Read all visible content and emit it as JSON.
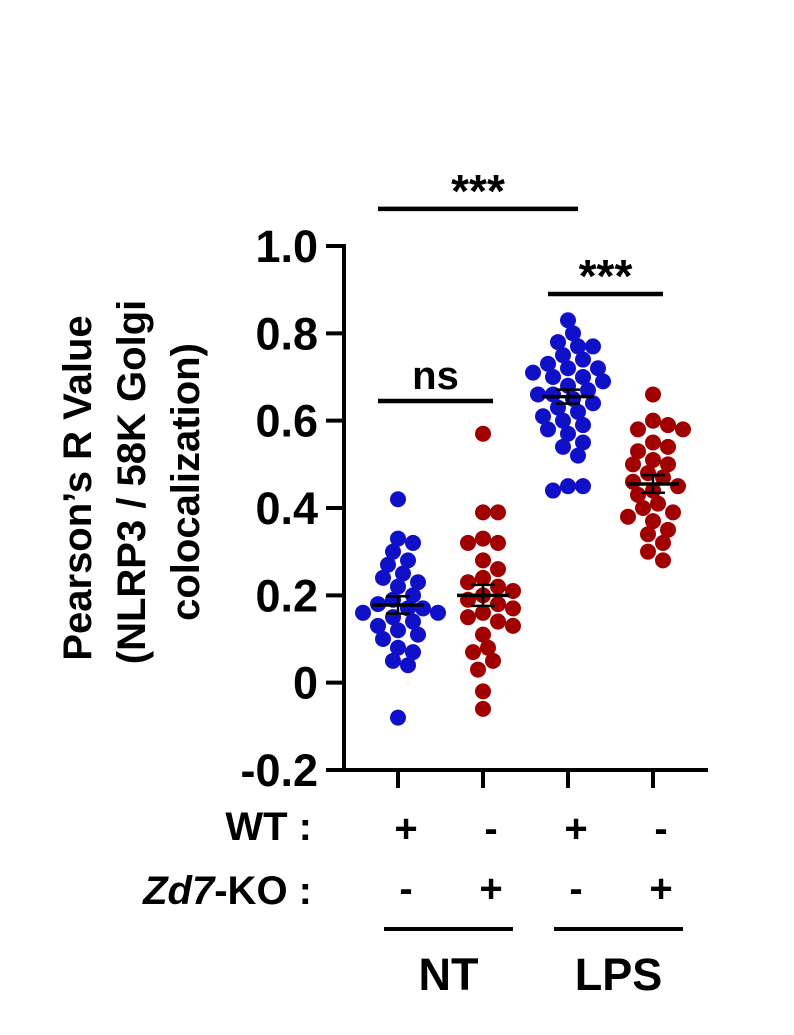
{
  "chart_data": {
    "type": "scatter",
    "ylabel_lines": [
      "Pearson’s R Value",
      "(NLRP3 / 58K Golgi",
      "colocalization)"
    ],
    "ylim": [
      -0.2,
      1.0
    ],
    "yticks": [
      1.0,
      0.8,
      0.6,
      0.4,
      0.2,
      0,
      -0.2
    ],
    "ytick_labels": [
      "1.0",
      "0.8",
      "0.6",
      "0.4",
      "0.2",
      "0",
      "-0.2"
    ],
    "row_labels": [
      {
        "prefix": "WT",
        "italic": "",
        "suffix": " :"
      },
      {
        "prefix": "",
        "italic": "Zd7",
        "suffix": "-KO :"
      }
    ],
    "groups": [
      {
        "wt": "+",
        "ko": "-",
        "color": "#1010c8",
        "mean": 0.178,
        "sem": 0.02,
        "points": [
          0.42,
          0.33,
          0.32,
          0.3,
          0.28,
          0.27,
          0.25,
          0.24,
          0.23,
          0.22,
          0.2,
          0.19,
          0.18,
          0.17,
          0.17,
          0.16,
          0.16,
          0.15,
          0.14,
          0.13,
          0.12,
          0.11,
          0.1,
          0.08,
          0.07,
          0.05,
          0.04,
          -0.08
        ]
      },
      {
        "wt": "-",
        "ko": "+",
        "color": "#a00000",
        "mean": 0.2,
        "sem": 0.024,
        "points": [
          0.57,
          0.39,
          0.39,
          0.33,
          0.32,
          0.32,
          0.28,
          0.26,
          0.24,
          0.23,
          0.22,
          0.21,
          0.2,
          0.19,
          0.18,
          0.17,
          0.16,
          0.15,
          0.14,
          0.13,
          0.11,
          0.08,
          0.07,
          0.05,
          0.03,
          -0.02,
          -0.06
        ]
      },
      {
        "wt": "+",
        "ko": "-",
        "color": "#1010c8",
        "mean": 0.655,
        "sem": 0.016,
        "points": [
          0.83,
          0.8,
          0.78,
          0.77,
          0.77,
          0.75,
          0.74,
          0.73,
          0.72,
          0.72,
          0.71,
          0.7,
          0.7,
          0.69,
          0.68,
          0.67,
          0.66,
          0.66,
          0.65,
          0.64,
          0.63,
          0.62,
          0.61,
          0.6,
          0.59,
          0.58,
          0.57,
          0.55,
          0.54,
          0.52,
          0.45,
          0.45,
          0.44
        ]
      },
      {
        "wt": "-",
        "ko": "+",
        "color": "#a00000",
        "mean": 0.455,
        "sem": 0.02,
        "points": [
          0.66,
          0.6,
          0.59,
          0.58,
          0.58,
          0.55,
          0.54,
          0.53,
          0.51,
          0.5,
          0.5,
          0.48,
          0.47,
          0.46,
          0.45,
          0.44,
          0.43,
          0.41,
          0.4,
          0.39,
          0.38,
          0.37,
          0.35,
          0.34,
          0.32,
          0.3,
          0.28
        ]
      }
    ],
    "x_groups": [
      {
        "label": "NT",
        "from": 0,
        "to": 1
      },
      {
        "label": "LPS",
        "from": 2,
        "to": 3
      }
    ],
    "significance": [
      {
        "label": "***",
        "from": 0,
        "to": 2,
        "y": 1.085
      },
      {
        "label": "ns",
        "from": 0,
        "to": 1,
        "y": 0.645
      },
      {
        "label": "***",
        "from": 2,
        "to": 3,
        "y": 0.89
      }
    ]
  }
}
